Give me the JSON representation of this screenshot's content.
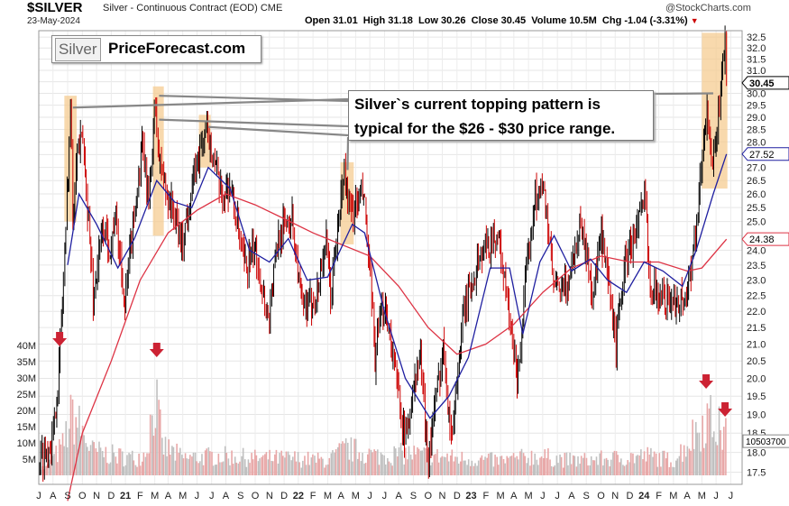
{
  "header": {
    "symbol": "$SILVER",
    "description": "Silver - Continuous Contract (EOD)",
    "exchange": "CME",
    "date": "23-May-2024",
    "ohlc_line": "Open 31.01  High 31.18  Low 30.26  Close 30.45  Volume 10.5M  Chg -1.04 (-3.31%)",
    "ohlc_arrow": "▼",
    "attribution": "@StockCharts.com"
  },
  "logo": {
    "part1": "Silver",
    "part2": "PriceForecast.com"
  },
  "annotation": {
    "line1": "Silver`s current topping pattern is",
    "line2": "typical for the $26 - $30 price range."
  },
  "colors": {
    "price_down": "#cc0000",
    "price_up": "#000000",
    "ma_short": "#1f1fa0",
    "ma_long": "#dd3344",
    "highlight": "#f5c98a",
    "volume": "#e8a8a8",
    "arrow": "#cc2233"
  },
  "chart_data": {
    "type": "ohlc",
    "price_axis": {
      "ticks": [
        "17.5",
        "18.0",
        "18.5",
        "19.0",
        "19.5",
        "20.0",
        "20.5",
        "21.0",
        "21.5",
        "22.0",
        "22.5",
        "23.0",
        "23.5",
        "24.0",
        "24.5",
        "25.0",
        "25.5",
        "26.0",
        "26.5",
        "27.0",
        "27.5",
        "28.0",
        "28.5",
        "29.0",
        "29.5",
        "30.0",
        "30.5",
        "31.0",
        "31.5",
        "32.0",
        "32.5"
      ],
      "scale": "log",
      "range": [
        17.2,
        32.8
      ]
    },
    "volume_axis": {
      "ticks": [
        "5M",
        "10M",
        "15M",
        "20M",
        "25M",
        "30M",
        "35M",
        "40M"
      ],
      "range": [
        0,
        43
      ]
    },
    "x_axis": {
      "labels": [
        "J",
        "A",
        "S",
        "O",
        "N",
        "D",
        "21",
        "F",
        "M",
        "A",
        "M",
        "J",
        "J",
        "A",
        "S",
        "O",
        "N",
        "D",
        "22",
        "F",
        "M",
        "A",
        "M",
        "J",
        "J",
        "A",
        "S",
        "O",
        "N",
        "D",
        "23",
        "F",
        "M",
        "A",
        "M",
        "J",
        "J",
        "A",
        "S",
        "O",
        "N",
        "D",
        "24",
        "F",
        "M",
        "A",
        "M",
        "J",
        "J"
      ],
      "start": "2020-06",
      "end": "2024-06"
    },
    "price_tags": [
      {
        "label": "30.45",
        "value": 30.45,
        "style": "close"
      },
      {
        "label": "27.52",
        "value": 27.52,
        "style": "ma_short"
      },
      {
        "label": "24.38",
        "value": 24.38,
        "style": "ma_long"
      }
    ],
    "volume_tag": {
      "label": "10503700",
      "value": 10.5
    },
    "price_series": [
      [
        "2020-06-01",
        17.8
      ],
      [
        "2020-07-01",
        18.3
      ],
      [
        "2020-07-15",
        20.5
      ],
      [
        "2020-07-28",
        24.5
      ],
      [
        "2020-08-07",
        29.3
      ],
      [
        "2020-08-12",
        25.2
      ],
      [
        "2020-08-20",
        27.8
      ],
      [
        "2020-09-02",
        28.0
      ],
      [
        "2020-09-24",
        22.4
      ],
      [
        "2020-10-15",
        24.8
      ],
      [
        "2020-11-01",
        24.0
      ],
      [
        "2020-11-09",
        25.4
      ],
      [
        "2020-11-30",
        22.2
      ],
      [
        "2020-12-15",
        24.6
      ],
      [
        "2021-01-06",
        27.8
      ],
      [
        "2021-01-20",
        25.5
      ],
      [
        "2021-02-01",
        29.6
      ],
      [
        "2021-02-10",
        27.3
      ],
      [
        "2021-02-26",
        26.0
      ],
      [
        "2021-03-10",
        25.5
      ],
      [
        "2021-03-31",
        24.2
      ],
      [
        "2021-04-20",
        26.2
      ],
      [
        "2021-05-18",
        28.4
      ],
      [
        "2021-06-01",
        27.9
      ],
      [
        "2021-06-20",
        25.9
      ],
      [
        "2021-07-10",
        26.3
      ],
      [
        "2021-08-10",
        23.4
      ],
      [
        "2021-09-01",
        24.0
      ],
      [
        "2021-09-29",
        21.7
      ],
      [
        "2021-10-20",
        24.5
      ],
      [
        "2021-11-16",
        25.3
      ],
      [
        "2021-12-10",
        21.9
      ],
      [
        "2022-01-10",
        22.6
      ],
      [
        "2022-01-28",
        24.4
      ],
      [
        "2022-02-07",
        22.4
      ],
      [
        "2022-03-08",
        26.9
      ],
      [
        "2022-03-20",
        25.2
      ],
      [
        "2022-04-18",
        26.0
      ],
      [
        "2022-05-12",
        20.6
      ],
      [
        "2022-06-01",
        22.4
      ],
      [
        "2022-07-14",
        18.3
      ],
      [
        "2022-08-15",
        20.7
      ],
      [
        "2022-09-01",
        17.8
      ],
      [
        "2022-10-04",
        21.0
      ],
      [
        "2022-10-20",
        18.3
      ],
      [
        "2022-11-15",
        21.9
      ],
      [
        "2022-12-16",
        23.7
      ],
      [
        "2023-01-26",
        24.6
      ],
      [
        "2023-02-28",
        20.8
      ],
      [
        "2023-03-09",
        20.0
      ],
      [
        "2023-04-14",
        26.0
      ],
      [
        "2023-05-04",
        26.1
      ],
      [
        "2023-05-25",
        22.7
      ],
      [
        "2023-06-20",
        22.7
      ],
      [
        "2023-07-20",
        25.0
      ],
      [
        "2023-08-15",
        22.5
      ],
      [
        "2023-09-01",
        24.5
      ],
      [
        "2023-10-03",
        21.0
      ],
      [
        "2023-10-20",
        23.4
      ],
      [
        "2023-12-04",
        25.8
      ],
      [
        "2023-12-13",
        22.9
      ],
      [
        "2024-01-22",
        22.3
      ],
      [
        "2024-02-28",
        22.4
      ],
      [
        "2024-03-20",
        24.8
      ],
      [
        "2024-04-12",
        29.5
      ],
      [
        "2024-04-23",
        26.5
      ],
      [
        "2024-05-20",
        32.3
      ],
      [
        "2024-05-23",
        30.45
      ]
    ],
    "ma_short_series": [
      [
        "2020-08-01",
        23.5
      ],
      [
        "2020-08-25",
        26.0
      ],
      [
        "2020-10-01",
        24.9
      ],
      [
        "2020-11-15",
        23.4
      ],
      [
        "2020-12-20",
        24.4
      ],
      [
        "2021-02-05",
        26.5
      ],
      [
        "2021-03-15",
        25.7
      ],
      [
        "2021-04-20",
        25.5
      ],
      [
        "2021-05-25",
        27.0
      ],
      [
        "2021-07-10",
        26.2
      ],
      [
        "2021-08-20",
        24.0
      ],
      [
        "2021-10-01",
        23.6
      ],
      [
        "2021-11-10",
        24.4
      ],
      [
        "2021-12-20",
        23.0
      ],
      [
        "2022-02-01",
        23.1
      ],
      [
        "2022-03-25",
        24.9
      ],
      [
        "2022-04-20",
        24.6
      ],
      [
        "2022-06-01",
        22.0
      ],
      [
        "2022-07-15",
        20.0
      ],
      [
        "2022-09-05",
        18.9
      ],
      [
        "2022-10-15",
        19.5
      ],
      [
        "2022-11-25",
        20.6
      ],
      [
        "2023-01-10",
        23.4
      ],
      [
        "2023-02-20",
        23.4
      ],
      [
        "2023-03-20",
        21.3
      ],
      [
        "2023-04-25",
        23.6
      ],
      [
        "2023-05-25",
        24.5
      ],
      [
        "2023-07-01",
        23.3
      ],
      [
        "2023-08-10",
        23.7
      ],
      [
        "2023-09-15",
        23.0
      ],
      [
        "2023-10-25",
        22.6
      ],
      [
        "2023-12-01",
        23.6
      ],
      [
        "2024-01-10",
        23.3
      ],
      [
        "2024-02-20",
        22.8
      ],
      [
        "2024-03-20",
        24.0
      ],
      [
        "2024-04-25",
        26.0
      ],
      [
        "2024-05-23",
        27.52
      ]
    ],
    "ma_long_series": [
      [
        "2020-08-01",
        16.8
      ],
      [
        "2020-09-01",
        18.5
      ],
      [
        "2020-11-01",
        20.5
      ],
      [
        "2021-01-01",
        23.0
      ],
      [
        "2021-03-01",
        24.6
      ],
      [
        "2021-05-01",
        25.4
      ],
      [
        "2021-07-01",
        26.0
      ],
      [
        "2021-09-01",
        25.6
      ],
      [
        "2021-11-01",
        25.1
      ],
      [
        "2022-01-01",
        24.6
      ],
      [
        "2022-03-01",
        24.2
      ],
      [
        "2022-05-01",
        23.8
      ],
      [
        "2022-07-01",
        22.8
      ],
      [
        "2022-09-01",
        21.5
      ],
      [
        "2022-11-01",
        20.7
      ],
      [
        "2023-01-01",
        21.0
      ],
      [
        "2023-03-01",
        21.6
      ],
      [
        "2023-05-01",
        22.6
      ],
      [
        "2023-07-01",
        23.4
      ],
      [
        "2023-09-01",
        23.8
      ],
      [
        "2023-11-01",
        23.6
      ],
      [
        "2024-01-01",
        23.6
      ],
      [
        "2024-03-01",
        23.3
      ],
      [
        "2024-04-01",
        23.4
      ],
      [
        "2024-05-23",
        24.38
      ]
    ],
    "highlights": [
      {
        "from": "2020-07-25",
        "to": "2020-08-20",
        "low": 25.0,
        "high": 29.9
      },
      {
        "from": "2021-01-28",
        "to": "2021-02-20",
        "low": 24.5,
        "high": 30.3
      },
      {
        "from": "2021-05-05",
        "to": "2021-05-30",
        "low": 27.0,
        "high": 29.1
      },
      {
        "from": "2022-02-28",
        "to": "2022-03-28",
        "low": 24.2,
        "high": 27.2
      },
      {
        "from": "2024-04-01",
        "to": "2024-05-25",
        "low": 26.2,
        "high": 32.7
      }
    ],
    "volume_series": [
      [
        "2020-06-15",
        3
      ],
      [
        "2020-07-20",
        12
      ],
      [
        "2020-08-10",
        25
      ],
      [
        "2020-09-20",
        10
      ],
      [
        "2020-11-10",
        8
      ],
      [
        "2020-12-20",
        7
      ],
      [
        "2021-01-10",
        9
      ],
      [
        "2021-02-01",
        32
      ],
      [
        "2021-02-15",
        12
      ],
      [
        "2021-04-01",
        7
      ],
      [
        "2021-06-15",
        8
      ],
      [
        "2021-09-01",
        7
      ],
      [
        "2021-11-15",
        7
      ],
      [
        "2022-02-01",
        6
      ],
      [
        "2022-03-10",
        11
      ],
      [
        "2022-05-15",
        8
      ],
      [
        "2022-07-20",
        9
      ],
      [
        "2022-09-01",
        8
      ],
      [
        "2022-11-01",
        7
      ],
      [
        "2023-02-01",
        6
      ],
      [
        "2023-04-15",
        8
      ],
      [
        "2023-07-01",
        6
      ],
      [
        "2023-10-01",
        7
      ],
      [
        "2023-12-10",
        8
      ],
      [
        "2024-02-01",
        6
      ],
      [
        "2024-04-10",
        24
      ],
      [
        "2024-05-20",
        16
      ]
    ],
    "volume_arrows": [
      "2020-07-15",
      "2021-02-05",
      "2024-04-10",
      "2024-05-20"
    ]
  }
}
